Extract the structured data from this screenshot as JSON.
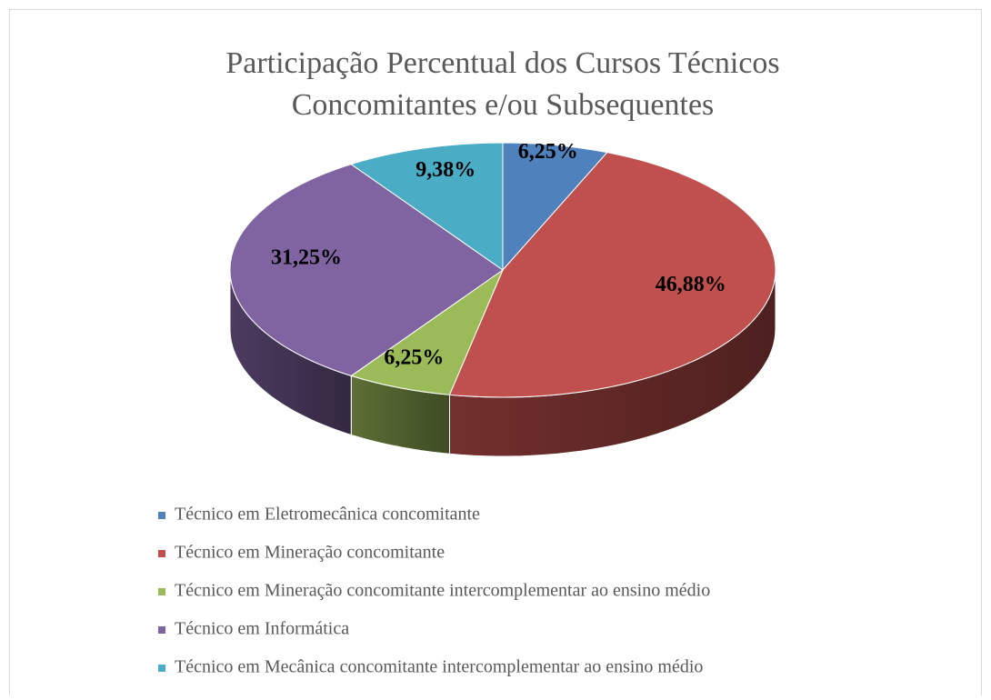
{
  "chart_data": {
    "type": "pie",
    "title": [
      "Participação Percentual dos Cursos Técnicos",
      "Concomitantes e/ou Subsequentes"
    ],
    "categories": [
      "Técnico em Eletromecânica concomitante",
      "Técnico em Mineração concomitante",
      "Técnico em Mineração concomitante intercomplementar ao ensino médio",
      "Técnico em Informática",
      "Técnico em Mecânica concomitante intercomplementar ao ensino médio"
    ],
    "values": [
      6.25,
      46.88,
      6.25,
      31.25,
      9.38
    ],
    "value_labels": [
      "6,25%",
      "46,88%",
      "6,25%",
      "31,25%",
      "9,38%"
    ],
    "colors": [
      "#4f81bd",
      "#c0504d",
      "#9bbb59",
      "#8064a2",
      "#4bacc6"
    ],
    "legend": "bottom"
  }
}
